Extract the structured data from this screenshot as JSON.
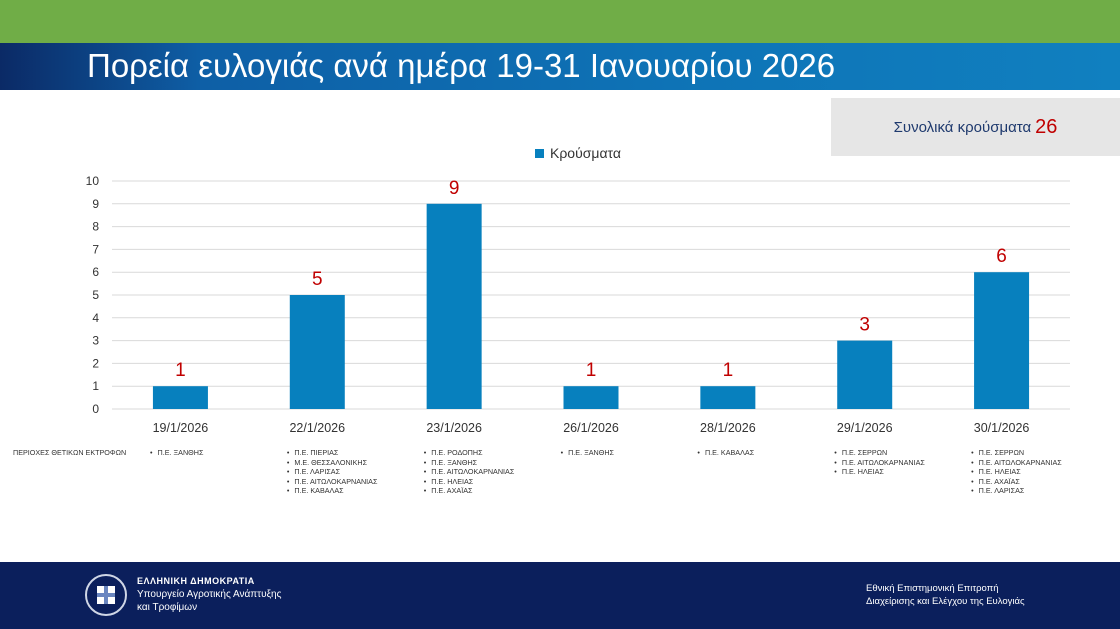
{
  "header": {
    "title": "Πορεία ευλογιάς ανά ημέρα 19-31 Ιανουαρίου 2026"
  },
  "total": {
    "label": "Συνολικά κρούσματα",
    "value": "26"
  },
  "colors": {
    "top_band": "#70AD47",
    "bar": "#0780BE",
    "data_label": "#C00000",
    "footer": "#0B1F5C"
  },
  "chart_data": {
    "type": "bar",
    "categories": [
      "19/1/2026",
      "22/1/2026",
      "23/1/2026",
      "26/1/2026",
      "28/1/2026",
      "29/1/2026",
      "30/1/2026"
    ],
    "series": [
      {
        "name": "Κρούσματα",
        "values": [
          1,
          5,
          9,
          1,
          1,
          3,
          6
        ]
      }
    ],
    "ylim": [
      0,
      10
    ],
    "yticks": [
      0,
      1,
      2,
      3,
      4,
      5,
      6,
      7,
      8,
      9,
      10
    ],
    "grid": true,
    "legend": "top"
  },
  "regions": {
    "label": "ΠΕΡΙΟΧΕΣ ΘΕΤΙΚΩΝ ΕΚΤΡΟΦΩΝ",
    "lists": [
      [
        "Π.Ε. ΞΑΝΘΗΣ"
      ],
      [
        "Π.Ε. ΠΙΕΡΙΑΣ",
        "Μ.Ε. ΘΕΣΣΑΛΟΝΙΚΗΣ",
        "Π.Ε. ΛΑΡΙΣΑΣ",
        "Π.Ε.  ΑΙΤΩΛΟΚΑΡΝΑΝΙΑΣ",
        "Π.Ε. ΚΑΒΑΛΑΣ"
      ],
      [
        "Π.Ε. ΡΟΔΟΠΗΣ",
        "Π.Ε. ΞΑΝΘΗΣ",
        "Π.Ε. ΑΙΤΩΛΟΚΑΡΝΑΝΙΑΣ",
        "Π.Ε.  ΗΛΕΙΑΣ",
        "Π.Ε. ΑΧΑΪΑΣ"
      ],
      [
        "Π.Ε. ΞΑΝΘΗΣ"
      ],
      [
        "Π.Ε. ΚΑΒΑΛΑΣ"
      ],
      [
        "Π.Ε. ΣΕΡΡΩΝ",
        "Π.Ε. ΑΙΤΩΛΟΚΑΡΝΑΝΙΑΣ",
        "Π.Ε. ΗΛΕΙΑΣ"
      ],
      [
        "Π.Ε. ΣΕΡΡΩΝ",
        "Π.Ε. ΑΙΤΩΛΟΚΑΡΝΑΝΙΑΣ",
        "Π.Ε. ΗΛΕΙΑΣ",
        "Π.Ε. ΑΧΑΪΑΣ",
        "Π.Ε. ΛΑΡΙΣΑΣ"
      ]
    ]
  },
  "footer": {
    "org_line1": "ΕΛΛΗΝΙΚΗ ΔΗΜΟΚΡΑΤΙΑ",
    "org_line2": "Υπουργείο Αγροτικής Ανάπτυξης",
    "org_line3": "και Τροφίμων",
    "right_line1": "Εθνική Επιστημονική Επιτροπή",
    "right_line2": "Διαχείρισης και Ελέγχου της Ευλογιάς"
  }
}
